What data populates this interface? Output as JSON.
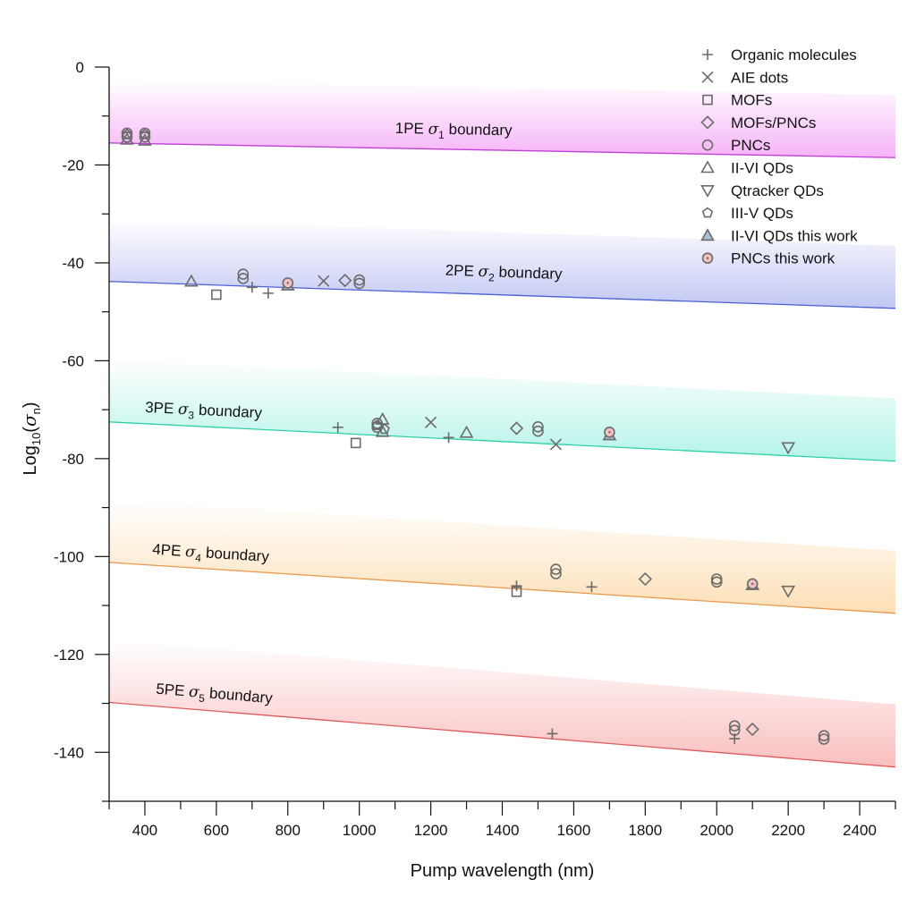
{
  "chart_data": {
    "type": "scatter",
    "title": "",
    "xlabel": "Pump wavelength (nm)",
    "ylabel_prefix": "Log",
    "ylabel_sub": "10",
    "ylabel_sigma": "σ",
    "ylabel_sigma_sub": "n",
    "xlim": [
      300,
      2500
    ],
    "ylim": [
      -150,
      0
    ],
    "x_ticks": [
      400,
      600,
      800,
      1000,
      1200,
      1400,
      1600,
      1800,
      2000,
      2200,
      2400
    ],
    "x_tick_labels": [
      "400",
      "600",
      "800",
      "1000",
      "1200",
      "1400",
      "1600",
      "1800",
      "2000",
      "2200",
      "2400"
    ],
    "y_ticks": [
      0,
      -20,
      -40,
      -60,
      -80,
      -100,
      -120,
      -140
    ],
    "y_tick_labels": [
      "0",
      "-20",
      "-40",
      "-60",
      "-80",
      "-100",
      "-120",
      "-140"
    ],
    "grid": false,
    "legend_position": "top-right",
    "boundaries": [
      {
        "name": "1PE",
        "label_prefix": "1PE ",
        "sigma": "σ",
        "sub": "1",
        "label_suffix": " boundary",
        "y_start": -15.5,
        "y_end": -18.5,
        "color": "#c03fd6",
        "fill": "#f5a6f7",
        "label_x": 1100,
        "label_y": -13.5
      },
      {
        "name": "2PE",
        "label_prefix": "2PE ",
        "sigma": "σ",
        "sub": "2",
        "label_suffix": " boundary",
        "y_start": -43.8,
        "y_end": -49.3,
        "color": "#4b5fd6",
        "fill": "#b7bdf1",
        "label_x": 1240,
        "label_y": -42.5
      },
      {
        "name": "3PE",
        "label_prefix": "3PE ",
        "sigma": "σ",
        "sub": "3",
        "label_suffix": " boundary",
        "y_start": -72.5,
        "y_end": -80.5,
        "color": "#2ed1a6",
        "fill": "#a6f1e4",
        "label_x": 400,
        "label_y": -70.5
      },
      {
        "name": "4PE",
        "label_prefix": "4PE ",
        "sigma": "σ",
        "sub": "4",
        "label_suffix": " boundary",
        "y_start": -101.2,
        "y_end": -111.6,
        "color": "#e99a4f",
        "fill": "#fcd9a9",
        "label_x": 420,
        "label_y": -99.5
      },
      {
        "name": "5PE",
        "label_prefix": "5PE ",
        "sigma": "σ",
        "sub": "5",
        "label_suffix": " boundary",
        "y_start": -129.8,
        "y_end": -143.0,
        "color": "#e05a5a",
        "fill": "#f8b3b3",
        "label_x": 430,
        "label_y": -128
      }
    ],
    "series": [
      {
        "name": "Organic molecules",
        "marker": "plus",
        "points": [
          [
            700,
            -45
          ],
          [
            745,
            -46.2
          ],
          [
            940,
            -73.6
          ],
          [
            1250,
            -75.7
          ],
          [
            1440,
            -106
          ],
          [
            1650,
            -106.2
          ],
          [
            1540,
            -136.2
          ],
          [
            2050,
            -137.2
          ]
        ]
      },
      {
        "name": "AIE dots",
        "marker": "x",
        "points": [
          [
            900,
            -43.7
          ],
          [
            1200,
            -72.6
          ],
          [
            1550,
            -77.1
          ]
        ]
      },
      {
        "name": "MOFs",
        "marker": "square",
        "points": [
          [
            600,
            -46.5
          ],
          [
            990,
            -76.8
          ],
          [
            1440,
            -107.2
          ]
        ]
      },
      {
        "name": "MOFs/PNCs",
        "marker": "diamond",
        "points": [
          [
            960,
            -43.6
          ],
          [
            1440,
            -73.8
          ],
          [
            1800,
            -104.6
          ],
          [
            2100,
            -135.3
          ]
        ]
      },
      {
        "name": "PNCs",
        "marker": "circle",
        "points": [
          [
            350,
            -13.5
          ],
          [
            350,
            -14.3
          ],
          [
            400,
            -13.5
          ],
          [
            400,
            -14.3
          ],
          [
            675,
            -42.3
          ],
          [
            675,
            -43.2
          ],
          [
            1000,
            -43.5
          ],
          [
            1000,
            -44.2
          ],
          [
            1050,
            -72.8
          ],
          [
            1050,
            -73.6
          ],
          [
            1500,
            -73.5
          ],
          [
            1500,
            -74.4
          ],
          [
            1550,
            -102.6
          ],
          [
            1550,
            -103.5
          ],
          [
            2000,
            -104.6
          ],
          [
            2000,
            -105.2
          ],
          [
            2050,
            -134.6
          ],
          [
            2050,
            -135.5
          ],
          [
            2300,
            -136.6
          ],
          [
            2300,
            -137.3
          ]
        ]
      },
      {
        "name": "II-VI QDs",
        "marker": "triangle-up",
        "points": [
          [
            350,
            -14.8
          ],
          [
            400,
            -15
          ],
          [
            530,
            -43.8
          ],
          [
            1065,
            -72
          ],
          [
            1065,
            -74.5
          ],
          [
            1300,
            -74.7
          ]
        ]
      },
      {
        "name": "Qtracker QDs",
        "marker": "triangle-down",
        "points": [
          [
            2200,
            -77.7
          ],
          [
            2200,
            -107
          ]
        ]
      },
      {
        "name": "III-V QDs",
        "marker": "pentagon",
        "points": [
          [
            350,
            -13.8
          ],
          [
            400,
            -13.8
          ],
          [
            1050,
            -73.2
          ],
          [
            1070,
            -74
          ]
        ]
      },
      {
        "name": "II-VI QDs this work",
        "marker": "triangle-up-filled",
        "points": [
          [
            800,
            -44.6
          ],
          [
            1700,
            -75.2
          ],
          [
            2100,
            -105.8
          ]
        ]
      },
      {
        "name": "PNCs this work",
        "marker": "circle-dot",
        "points": [
          [
            800,
            -44.1
          ],
          [
            1700,
            -74.6
          ],
          [
            2100,
            -105.6
          ]
        ]
      }
    ],
    "legend": [
      {
        "label": "Organic molecules",
        "marker": "plus"
      },
      {
        "label": "AIE dots",
        "marker": "x"
      },
      {
        "label": "MOFs",
        "marker": "square"
      },
      {
        "label": "MOFs/PNCs",
        "marker": "diamond"
      },
      {
        "label": "PNCs",
        "marker": "circle"
      },
      {
        "label": "II-VI QDs",
        "marker": "triangle-up"
      },
      {
        "label": "Qtracker QDs",
        "marker": "triangle-down"
      },
      {
        "label": "III-V QDs",
        "marker": "pentagon"
      },
      {
        "label": "II-VI QDs this work",
        "marker": "triangle-up-filled"
      },
      {
        "label": "PNCs this work",
        "marker": "circle-dot"
      }
    ],
    "colors": {
      "marker_stroke": "#6b6b6b",
      "this_work_triangle_fill": "#a9bfd1",
      "this_work_circle_fill": "#f2c0c0",
      "axis": "#111111"
    }
  }
}
